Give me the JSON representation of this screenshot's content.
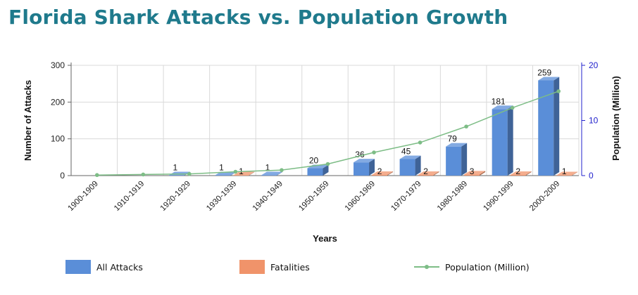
{
  "title": "Florida Shark Attacks vs. Population Growth",
  "colors": {
    "title": "#1f7a8c",
    "attacks": "#5a8ed8",
    "fatalities": "#f0936a",
    "population": "#7dbd86",
    "right_axis": "#2222cc"
  },
  "chart_data": {
    "type": "bar",
    "categories": [
      "1900-1909",
      "1910-1919",
      "1920-1929",
      "1930-1939",
      "1940-1949",
      "1950-1959",
      "1960-1969",
      "1970-1979",
      "1980-1989",
      "1990-1999",
      "2000-2009"
    ],
    "series": [
      {
        "name": "All Attacks",
        "type": "bar",
        "axis": "left",
        "values": [
          0,
          0,
          1,
          1,
          1,
          20,
          36,
          45,
          79,
          181,
          259
        ],
        "labels": [
          "",
          "",
          "1",
          "1",
          "1",
          "20",
          "36",
          "45",
          "79",
          "181",
          "259"
        ]
      },
      {
        "name": "Fatalities",
        "type": "bar",
        "axis": "left",
        "values": [
          0,
          0,
          0,
          1,
          0,
          0,
          2,
          2,
          3,
          2,
          1
        ],
        "labels": [
          "",
          "",
          "",
          "1",
          "",
          "",
          "2",
          "2",
          "3",
          "2",
          "1"
        ]
      },
      {
        "name": "Population (Million)",
        "type": "line",
        "axis": "right",
        "values": [
          0.1,
          0.2,
          0.3,
          0.7,
          1.0,
          2.1,
          4.2,
          6.0,
          8.9,
          12.3,
          15.3
        ]
      }
    ],
    "xlabel": "Years",
    "ylabel": "Number of Attacks",
    "y2label": "Population (Million)",
    "ylim": [
      0,
      300
    ],
    "yticks": [
      0,
      100,
      200,
      300
    ],
    "y2lim": [
      0,
      20
    ],
    "y2ticks": [
      0,
      10,
      20
    ],
    "grid": true,
    "legend_position": "bottom"
  }
}
